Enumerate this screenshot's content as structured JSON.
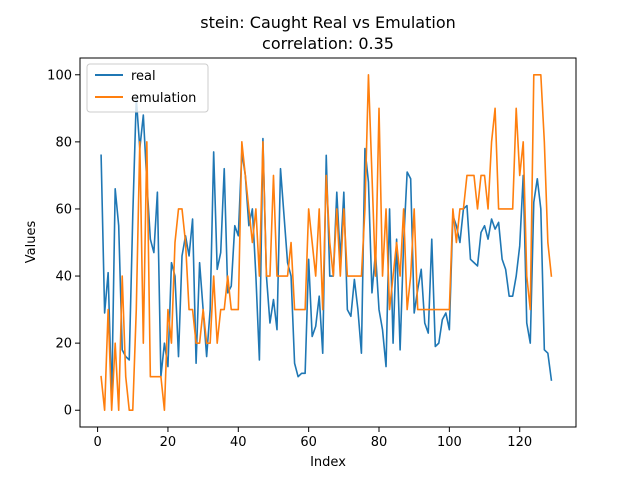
{
  "chart_data": {
    "type": "line",
    "title": "stein: Caught Real vs Emulation",
    "subtitle": "correlation: 0.35",
    "xlabel": "Index",
    "ylabel": "Values",
    "xlim": [
      -5,
      136
    ],
    "ylim": [
      -5,
      105
    ],
    "xticks": [
      0,
      20,
      40,
      60,
      80,
      100,
      120
    ],
    "yticks": [
      0,
      20,
      40,
      60,
      80,
      100
    ],
    "grid": false,
    "legend_position": "top-left",
    "series": [
      {
        "name": "real",
        "color": "#1f77b4",
        "x_start": 1,
        "values": [
          76,
          29,
          41,
          3,
          66,
          55,
          18,
          16,
          15,
          58,
          93,
          78,
          88,
          68,
          51,
          47,
          65,
          10,
          20,
          13,
          44,
          40,
          16,
          46,
          52,
          46,
          57,
          14,
          44,
          30,
          16,
          30,
          77,
          42,
          47,
          72,
          35,
          37,
          55,
          52,
          77,
          70,
          55,
          60,
          40,
          15,
          81,
          40,
          26,
          33,
          24,
          72,
          58,
          44,
          40,
          14,
          10,
          11,
          11,
          45,
          22,
          25,
          34,
          17,
          76,
          40,
          40,
          65,
          45,
          65,
          30,
          28,
          39,
          30,
          17,
          78,
          68,
          35,
          47,
          30,
          24,
          13,
          60,
          20,
          51,
          18,
          50,
          71,
          69,
          29,
          36,
          42,
          26,
          23,
          51,
          19,
          20,
          27,
          29,
          24,
          58,
          55,
          50,
          60,
          61,
          45,
          44,
          43,
          53,
          55,
          51,
          57,
          54,
          56,
          45,
          42,
          34,
          34,
          40,
          49,
          70,
          26,
          20,
          62,
          69,
          60,
          18,
          17,
          9
        ]
      },
      {
        "name": "emulation",
        "color": "#ff7f0e",
        "x_start": 1,
        "values": [
          10,
          0,
          30,
          0,
          20,
          0,
          40,
          10,
          0,
          0,
          30,
          80,
          20,
          80,
          10,
          10,
          10,
          10,
          0,
          30,
          20,
          50,
          60,
          60,
          50,
          30,
          30,
          20,
          20,
          30,
          20,
          20,
          40,
          20,
          30,
          30,
          40,
          30,
          30,
          30,
          80,
          70,
          60,
          50,
          60,
          40,
          80,
          40,
          40,
          70,
          40,
          40,
          40,
          40,
          50,
          30,
          30,
          30,
          30,
          60,
          50,
          40,
          60,
          30,
          70,
          50,
          40,
          60,
          40,
          60,
          40,
          40,
          40,
          40,
          40,
          60,
          100,
          70,
          40,
          90,
          40,
          60,
          30,
          40,
          50,
          40,
          60,
          30,
          40,
          60,
          30,
          30,
          30,
          30,
          30,
          30,
          30,
          30,
          30,
          30,
          60,
          50,
          60,
          60,
          70,
          70,
          70,
          60,
          70,
          70,
          60,
          80,
          90,
          60,
          60,
          60,
          60,
          60,
          90,
          70,
          80,
          40,
          30,
          100,
          100,
          100,
          80,
          50,
          40
        ]
      }
    ]
  }
}
